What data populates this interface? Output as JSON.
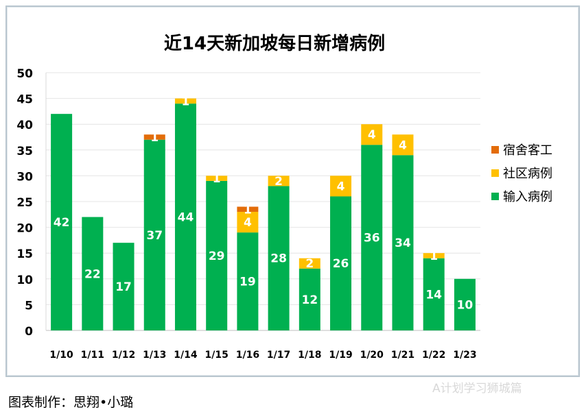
{
  "chart_data": {
    "type": "bar",
    "stacked": true,
    "title": "近14天新加坡每日新增病例",
    "categories": [
      "1/10",
      "1/11",
      "1/12",
      "1/13",
      "1/14",
      "1/15",
      "1/16",
      "1/17",
      "1/18",
      "1/19",
      "1/20",
      "1/21",
      "1/22",
      "1/23"
    ],
    "series": [
      {
        "name": "输入病例",
        "color": "#00b050",
        "values": [
          42,
          22,
          17,
          37,
          44,
          29,
          19,
          28,
          12,
          26,
          36,
          34,
          14,
          10
        ]
      },
      {
        "name": "社区病例",
        "color": "#ffc000",
        "values": [
          0,
          0,
          0,
          0,
          1,
          1,
          4,
          2,
          2,
          4,
          4,
          4,
          1,
          0
        ]
      },
      {
        "name": "宿舍客工",
        "color": "#e36c09",
        "values": [
          0,
          0,
          0,
          1,
          0,
          0,
          1,
          0,
          0,
          0,
          0,
          0,
          0,
          0
        ]
      }
    ],
    "legend_order": [
      "宿舍客工",
      "社区病例",
      "输入病例"
    ],
    "ylim": [
      0,
      50
    ],
    "yticks": [
      0,
      5,
      10,
      15,
      20,
      25,
      30,
      35,
      40,
      45,
      50
    ],
    "grid": true,
    "legend": "right"
  },
  "footer": {
    "credit": "图表制作：思翔•小璐",
    "watermark": "A计划学习狮城篇"
  }
}
